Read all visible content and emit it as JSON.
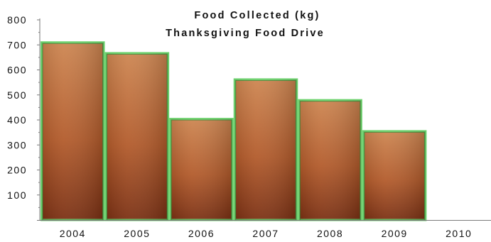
{
  "chart_data": {
    "type": "bar",
    "title": "Food Collected (kg)",
    "subtitle": "Thanksgiving Food Drive",
    "categories": [
      "2004",
      "2005",
      "2006",
      "2007",
      "2008",
      "2009",
      "2010"
    ],
    "values": [
      710,
      667,
      404,
      562,
      479,
      355,
      null
    ],
    "y_ticks": [
      "100",
      "200",
      "300",
      "400",
      "500",
      "600",
      "700",
      "800"
    ],
    "ylim": [
      0,
      800
    ],
    "xlabel": "",
    "ylabel": "",
    "grid": false,
    "legend": "none",
    "colors": {
      "bar_light": "#c97a45",
      "bar_mid": "#b25a2a",
      "bar_dark": "#7a2f12",
      "bar_border": "#6fd36f",
      "bar_border_dark": "#2f7d2f",
      "axis": "#7a7a7a"
    }
  }
}
